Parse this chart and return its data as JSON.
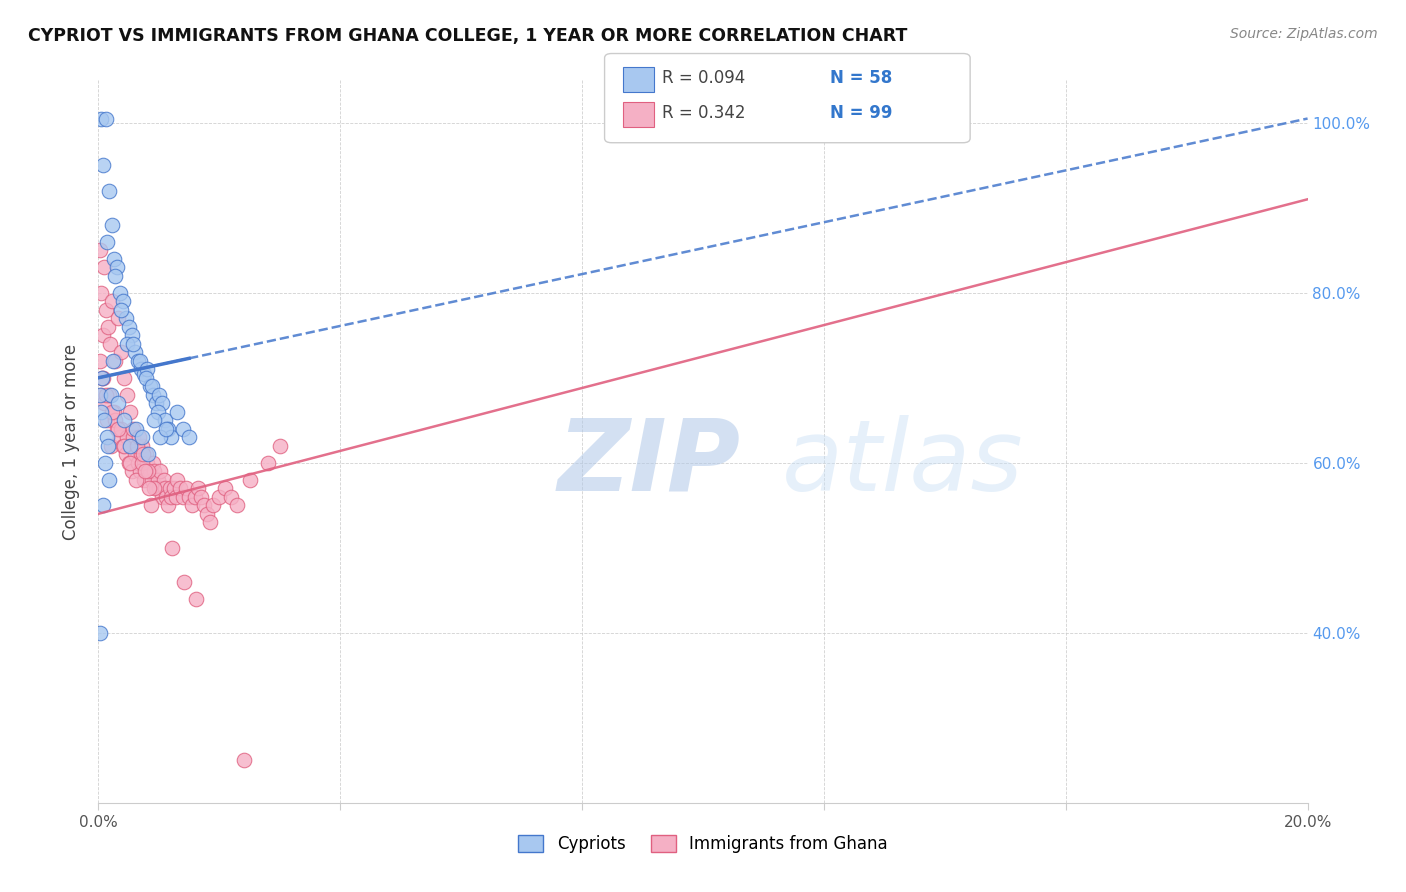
{
  "title": "CYPRIOT VS IMMIGRANTS FROM GHANA COLLEGE, 1 YEAR OR MORE CORRELATION CHART",
  "source": "Source: ZipAtlas.com",
  "ylabel": "College, 1 year or more",
  "x_min": 0.0,
  "x_max": 20.0,
  "y_min": 20.0,
  "y_max": 105.0,
  "cypriot_color": "#a8c8f0",
  "ghana_color": "#f5b0c5",
  "cypriot_line_color": "#4477cc",
  "ghana_line_color": "#e06080",
  "legend_label1": "Cypriots",
  "legend_label2": "Immigrants from Ghana",
  "watermark_zip": "ZIP",
  "watermark_atlas": "atlas",
  "cypriot_line_x0": 0.0,
  "cypriot_line_y0": 70.0,
  "cypriot_line_x1": 20.0,
  "cypriot_line_y1": 100.5,
  "ghana_line_x0": 0.0,
  "ghana_line_y0": 54.0,
  "ghana_line_x1": 20.0,
  "ghana_line_y1": 91.0,
  "cypriot_x": [
    0.05,
    0.12,
    0.08,
    0.18,
    0.22,
    0.15,
    0.25,
    0.3,
    0.35,
    0.28,
    0.4,
    0.45,
    0.38,
    0.5,
    0.55,
    0.48,
    0.6,
    0.65,
    0.58,
    0.7,
    0.75,
    0.68,
    0.8,
    0.85,
    0.78,
    0.9,
    0.95,
    0.88,
    1.0,
    1.05,
    0.98,
    1.1,
    1.15,
    1.2,
    1.3,
    1.4,
    1.5,
    0.02,
    0.04,
    0.06,
    0.1,
    0.14,
    0.16,
    0.2,
    0.24,
    0.32,
    0.42,
    0.52,
    0.62,
    0.72,
    0.82,
    0.92,
    1.02,
    1.12,
    0.03,
    0.07,
    0.11,
    0.17
  ],
  "cypriot_y": [
    100.5,
    100.5,
    95.0,
    92.0,
    88.0,
    86.0,
    84.0,
    83.0,
    80.0,
    82.0,
    79.0,
    77.0,
    78.0,
    76.0,
    75.0,
    74.0,
    73.0,
    72.0,
    74.0,
    71.0,
    70.5,
    72.0,
    71.0,
    69.0,
    70.0,
    68.0,
    67.0,
    69.0,
    68.0,
    67.0,
    66.0,
    65.0,
    64.0,
    63.0,
    66.0,
    64.0,
    63.0,
    68.0,
    66.0,
    70.0,
    65.0,
    63.0,
    62.0,
    68.0,
    72.0,
    67.0,
    65.0,
    62.0,
    64.0,
    63.0,
    61.0,
    65.0,
    63.0,
    64.0,
    40.0,
    55.0,
    60.0,
    58.0
  ],
  "ghana_x": [
    0.05,
    0.1,
    0.15,
    0.2,
    0.08,
    0.25,
    0.3,
    0.18,
    0.35,
    0.28,
    0.4,
    0.38,
    0.45,
    0.5,
    0.48,
    0.55,
    0.52,
    0.6,
    0.58,
    0.65,
    0.68,
    0.7,
    0.75,
    0.72,
    0.8,
    0.78,
    0.85,
    0.88,
    0.9,
    0.95,
    0.92,
    0.98,
    1.0,
    1.02,
    1.05,
    1.08,
    1.1,
    1.12,
    1.15,
    1.18,
    1.2,
    1.25,
    1.28,
    1.3,
    1.35,
    1.4,
    1.45,
    1.5,
    1.55,
    1.6,
    1.65,
    1.7,
    1.75,
    1.8,
    1.85,
    1.9,
    2.0,
    2.1,
    2.2,
    2.3,
    2.5,
    2.8,
    3.0,
    0.03,
    0.06,
    0.12,
    0.22,
    0.32,
    0.42,
    0.52,
    0.62,
    0.72,
    0.82,
    0.92,
    0.02,
    0.04,
    0.07,
    0.09,
    0.13,
    0.16,
    0.19,
    0.23,
    0.27,
    0.33,
    0.37,
    0.43,
    0.47,
    0.53,
    0.57,
    0.63,
    0.67,
    0.73,
    0.77,
    0.83,
    0.87,
    1.42,
    1.62,
    1.22,
    2.4
  ],
  "ghana_y": [
    68.0,
    67.0,
    65.0,
    62.0,
    70.0,
    66.0,
    64.0,
    68.0,
    63.0,
    65.0,
    62.0,
    64.0,
    61.0,
    60.0,
    63.0,
    59.0,
    62.0,
    61.0,
    63.0,
    60.0,
    59.0,
    61.0,
    58.0,
    62.0,
    60.0,
    61.0,
    59.0,
    58.0,
    60.0,
    57.0,
    59.0,
    58.0,
    57.0,
    59.0,
    56.0,
    58.0,
    57.0,
    56.0,
    55.0,
    57.0,
    56.0,
    57.0,
    56.0,
    58.0,
    57.0,
    56.0,
    57.0,
    56.0,
    55.0,
    56.0,
    57.0,
    56.0,
    55.0,
    54.0,
    53.0,
    55.0,
    56.0,
    57.0,
    56.0,
    55.0,
    58.0,
    60.0,
    62.0,
    72.0,
    70.0,
    68.0,
    66.0,
    64.0,
    62.0,
    60.0,
    58.0,
    60.0,
    59.0,
    57.0,
    85.0,
    80.0,
    75.0,
    83.0,
    78.0,
    76.0,
    74.0,
    79.0,
    72.0,
    77.0,
    73.0,
    70.0,
    68.0,
    66.0,
    64.0,
    62.0,
    63.0,
    61.0,
    59.0,
    57.0,
    55.0,
    46.0,
    44.0,
    50.0,
    25.0
  ]
}
